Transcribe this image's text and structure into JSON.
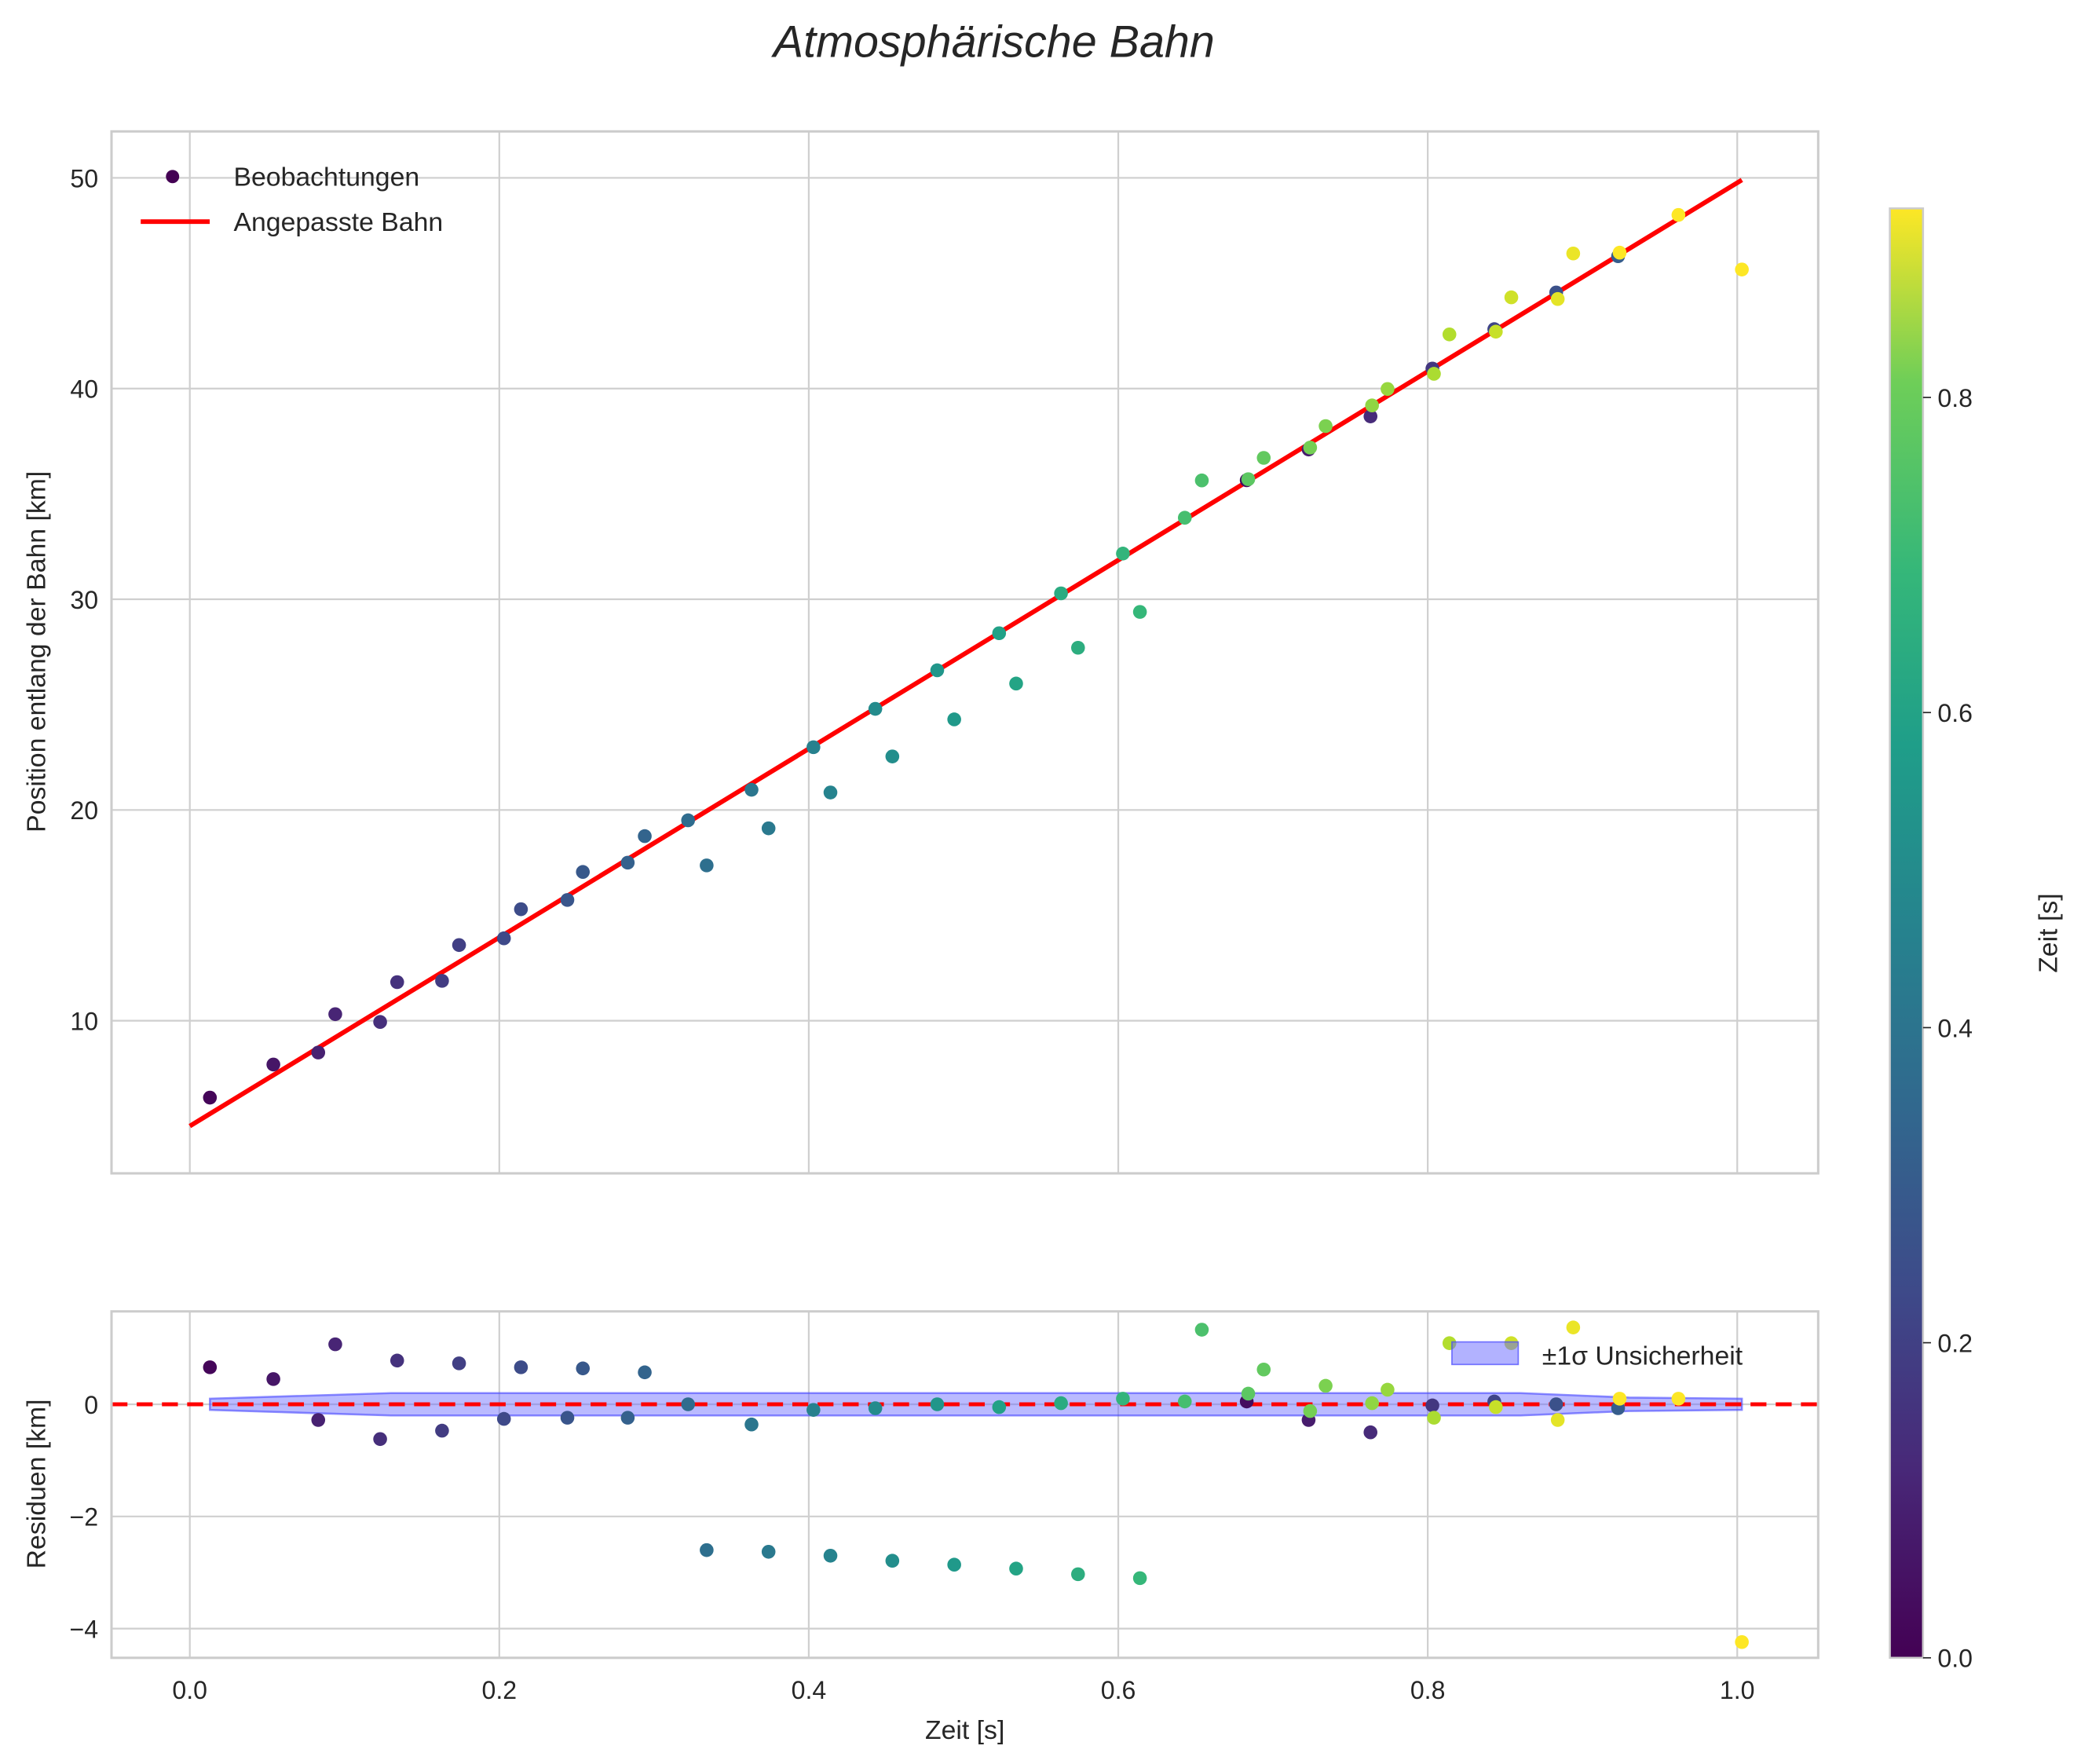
{
  "chart_data": [
    {
      "type": "scatter",
      "title": "Atmosphärische Bahn",
      "xlabel": "",
      "ylabel": "Position entlang der Bahn [km]",
      "xlim": [
        -0.05,
        1.05
      ],
      "ylim": [
        2.3,
        52.3
      ],
      "xticks": [
        "0.0",
        "0.2",
        "0.4",
        "0.6",
        "0.8",
        "1.0"
      ],
      "yticks": [
        "10",
        "20",
        "30",
        "40",
        "50"
      ],
      "grid": true,
      "legend": {
        "placement": "top-left",
        "entries": [
          "Beobachtungen",
          "Angepasste Bahn"
        ]
      },
      "fit_line": {
        "name": "Angepasste Bahn",
        "color": "#ff0000",
        "x": [
          0.0,
          1.003
        ],
        "y": [
          5.0,
          49.9
        ]
      },
      "series": [
        {
          "name": "Beobachtungen",
          "colormap": "viridis",
          "points": [
            {
              "t": 0.013,
              "y": 6.35,
              "r": 0.66,
              "c": 0.013
            },
            {
              "t": 0.054,
              "y": 7.92,
              "r": 0.45,
              "c": 0.054
            },
            {
              "t": 0.083,
              "y": 8.49,
              "r": -0.28,
              "c": 0.083
            },
            {
              "t": 0.094,
              "y": 10.31,
              "r": 1.07,
              "c": 0.094
            },
            {
              "t": 0.123,
              "y": 9.94,
              "r": -0.62,
              "c": 0.123
            },
            {
              "t": 0.134,
              "y": 11.83,
              "r": 0.78,
              "c": 0.134
            },
            {
              "t": 0.163,
              "y": 11.89,
              "r": -0.47,
              "c": 0.163
            },
            {
              "t": 0.174,
              "y": 13.59,
              "r": 0.73,
              "c": 0.174
            },
            {
              "t": 0.203,
              "y": 13.91,
              "r": -0.26,
              "c": 0.203
            },
            {
              "t": 0.214,
              "y": 15.29,
              "r": 0.66,
              "c": 0.214
            },
            {
              "t": 0.244,
              "y": 15.73,
              "r": -0.24,
              "c": 0.244
            },
            {
              "t": 0.254,
              "y": 17.06,
              "r": 0.64,
              "c": 0.254
            },
            {
              "t": 0.283,
              "y": 17.5,
              "r": -0.24,
              "c": 0.283
            },
            {
              "t": 0.294,
              "y": 18.76,
              "r": 0.57,
              "c": 0.294
            },
            {
              "t": 0.322,
              "y": 19.51,
              "r": 0.0,
              "c": 0.322
            },
            {
              "t": 0.334,
              "y": 17.37,
              "r": -2.6,
              "c": 0.334
            },
            {
              "t": 0.363,
              "y": 20.96,
              "r": -0.36,
              "c": 0.363
            },
            {
              "t": 0.374,
              "y": 19.13,
              "r": -2.63,
              "c": 0.374
            },
            {
              "t": 0.403,
              "y": 22.98,
              "r": -0.1,
              "c": 0.403
            },
            {
              "t": 0.414,
              "y": 20.83,
              "r": -2.7,
              "c": 0.414
            },
            {
              "t": 0.443,
              "y": 24.8,
              "r": -0.07,
              "c": 0.443
            },
            {
              "t": 0.454,
              "y": 22.54,
              "r": -2.79,
              "c": 0.454
            },
            {
              "t": 0.483,
              "y": 26.63,
              "r": 0.0,
              "c": 0.483
            },
            {
              "t": 0.494,
              "y": 24.3,
              "r": -2.86,
              "c": 0.494
            },
            {
              "t": 0.523,
              "y": 28.39,
              "r": -0.05,
              "c": 0.523
            },
            {
              "t": 0.534,
              "y": 26.0,
              "r": -2.93,
              "c": 0.534
            },
            {
              "t": 0.563,
              "y": 30.28,
              "r": 0.02,
              "c": 0.563
            },
            {
              "t": 0.574,
              "y": 27.7,
              "r": -3.03,
              "c": 0.574
            },
            {
              "t": 0.603,
              "y": 32.17,
              "r": 0.1,
              "c": 0.603
            },
            {
              "t": 0.614,
              "y": 29.4,
              "r": -3.1,
              "c": 0.614
            },
            {
              "t": 0.643,
              "y": 33.87,
              "r": 0.05,
              "c": 0.643
            },
            {
              "t": 0.654,
              "y": 35.64,
              "r": 1.33,
              "c": 0.654
            },
            {
              "t": 0.683,
              "y": 35.65,
              "r": 0.05,
              "c": 0.03
            },
            {
              "t": 0.684,
              "y": 35.7,
              "r": 0.19,
              "c": 0.684
            },
            {
              "t": 0.694,
              "y": 36.71,
              "r": 0.62,
              "c": 0.694
            },
            {
              "t": 0.723,
              "y": 37.11,
              "r": -0.28,
              "c": 0.07
            },
            {
              "t": 0.724,
              "y": 37.2,
              "r": -0.12,
              "c": 0.724
            },
            {
              "t": 0.734,
              "y": 38.22,
              "r": 0.33,
              "c": 0.734
            },
            {
              "t": 0.763,
              "y": 38.68,
              "r": -0.5,
              "c": 0.11
            },
            {
              "t": 0.764,
              "y": 39.2,
              "r": 0.02,
              "c": 0.764
            },
            {
              "t": 0.774,
              "y": 39.98,
              "r": 0.26,
              "c": 0.774
            },
            {
              "t": 0.803,
              "y": 40.95,
              "r": -0.02,
              "c": 0.15
            },
            {
              "t": 0.804,
              "y": 40.7,
              "r": -0.24,
              "c": 0.804
            },
            {
              "t": 0.814,
              "y": 42.57,
              "r": 1.09,
              "c": 0.814
            },
            {
              "t": 0.843,
              "y": 42.82,
              "r": 0.05,
              "c": 0.19
            },
            {
              "t": 0.844,
              "y": 42.7,
              "r": -0.05,
              "c": 0.844
            },
            {
              "t": 0.854,
              "y": 44.33,
              "r": 1.09,
              "c": 0.854
            },
            {
              "t": 0.883,
              "y": 44.56,
              "r": 0.0,
              "c": 0.23
            },
            {
              "t": 0.884,
              "y": 44.25,
              "r": -0.28,
              "c": 0.884
            },
            {
              "t": 0.894,
              "y": 46.41,
              "r": 1.37,
              "c": 0.894
            },
            {
              "t": 0.923,
              "y": 46.28,
              "r": -0.07,
              "c": 0.27
            },
            {
              "t": 0.924,
              "y": 46.45,
              "r": 0.1,
              "c": 0.924
            },
            {
              "t": 0.962,
              "y": 48.24,
              "r": 0.1,
              "c": 0.962
            },
            {
              "t": 1.003,
              "y": 45.65,
              "r": -4.24,
              "c": 1.003
            }
          ]
        }
      ]
    },
    {
      "type": "scatter",
      "xlabel": "Zeit [s]",
      "ylabel": "Residuen [km]",
      "xlim": [
        -0.05,
        1.05
      ],
      "ylim": [
        -4.5,
        1.7
      ],
      "xticks": [
        "0.0",
        "0.2",
        "0.4",
        "0.6",
        "0.8",
        "1.0"
      ],
      "yticks": [
        "−4",
        "−2",
        "0"
      ],
      "zero_line_color": "#ff0000",
      "band": {
        "name": "±1σ Unsicherheit",
        "color": "#6666ff",
        "t": [
          0.013,
          0.13,
          0.5,
          0.7,
          0.86,
          0.93,
          1.003
        ],
        "sigma": [
          0.1,
          0.2,
          0.2,
          0.2,
          0.2,
          0.12,
          0.1
        ]
      },
      "legend": {
        "placement": "top-right",
        "entries": [
          "±1σ Unsicherheit"
        ]
      }
    }
  ],
  "colorbar": {
    "label": "Zeit [s]",
    "range": [
      0.0,
      0.92
    ],
    "ticks": [
      "0.0",
      "0.2",
      "0.4",
      "0.6",
      "0.8"
    ],
    "tick_values": [
      0,
      0.2,
      0.4,
      0.6,
      0.8
    ]
  }
}
